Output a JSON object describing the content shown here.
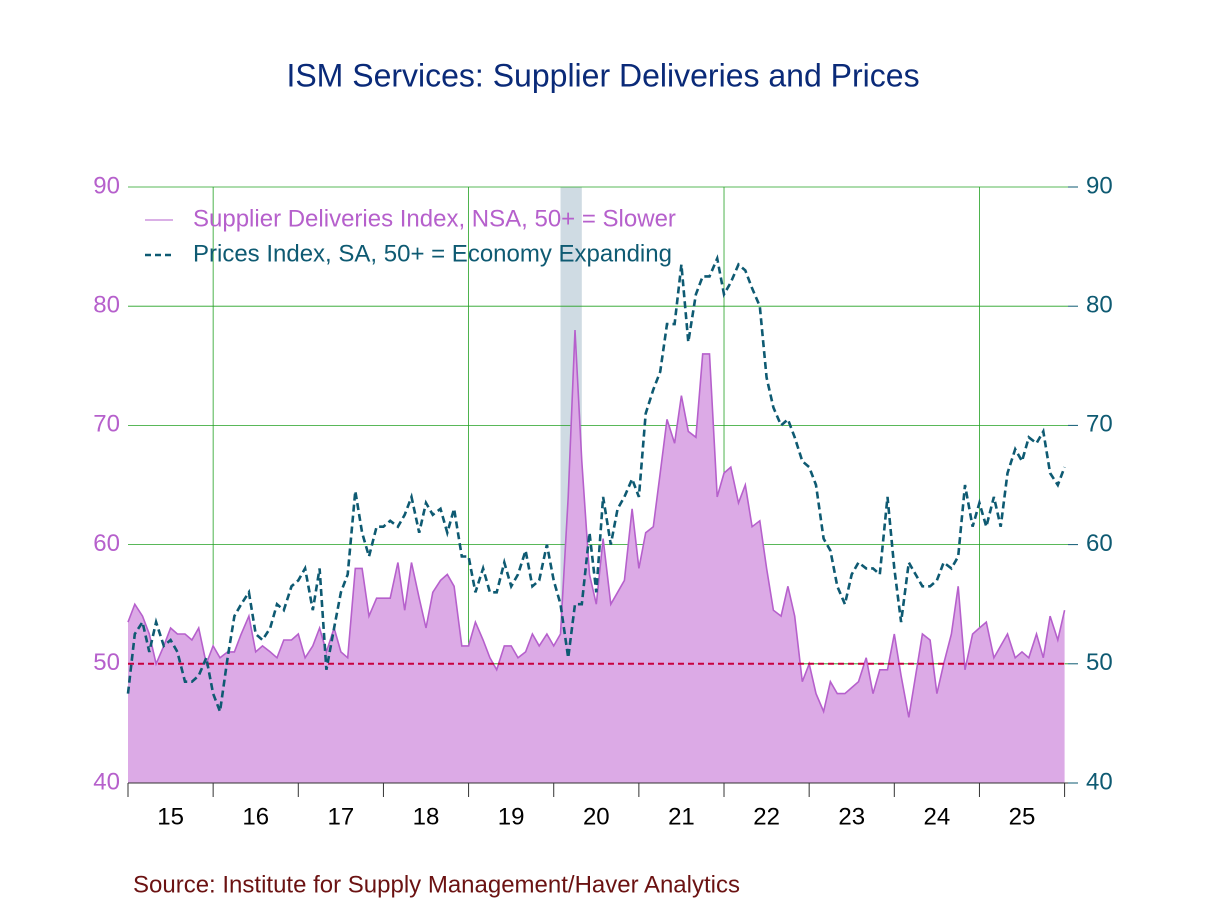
{
  "chart_data": {
    "type": "line",
    "title": "ISM Services: Supplier Deliveries and Prices",
    "source": "Source:  Institute for Supply Management/Haver Analytics",
    "x": [
      2015,
      2015.08,
      2015.17,
      2015.25,
      2015.33,
      2015.42,
      2015.5,
      2015.58,
      2015.67,
      2015.75,
      2015.83,
      2015.92,
      2016,
      2016.08,
      2016.17,
      2016.25,
      2016.33,
      2016.42,
      2016.5,
      2016.58,
      2016.67,
      2016.75,
      2016.83,
      2016.92,
      2017,
      2017.08,
      2017.17,
      2017.25,
      2017.33,
      2017.42,
      2017.5,
      2017.58,
      2017.67,
      2017.75,
      2017.83,
      2017.92,
      2018,
      2018.08,
      2018.17,
      2018.25,
      2018.33,
      2018.42,
      2018.5,
      2018.58,
      2018.67,
      2018.75,
      2018.83,
      2018.92,
      2019,
      2019.08,
      2019.17,
      2019.25,
      2019.33,
      2019.42,
      2019.5,
      2019.58,
      2019.67,
      2019.75,
      2019.83,
      2019.92,
      2020,
      2020.08,
      2020.17,
      2020.25,
      2020.33,
      2020.42,
      2020.5,
      2020.58,
      2020.67,
      2020.75,
      2020.83,
      2020.92,
      2021,
      2021.08,
      2021.17,
      2021.25,
      2021.33,
      2021.42,
      2021.5,
      2021.58,
      2021.67,
      2021.75,
      2021.83,
      2021.92,
      2022,
      2022.08,
      2022.17,
      2022.25,
      2022.33,
      2022.42,
      2022.5,
      2022.58,
      2022.67,
      2022.75,
      2022.83,
      2022.92,
      2023,
      2023.08,
      2023.17,
      2023.25,
      2023.33,
      2023.42,
      2023.5,
      2023.58,
      2023.67,
      2023.75,
      2023.83,
      2023.92,
      2024,
      2024.08,
      2024.17,
      2024.25,
      2024.33,
      2024.42,
      2024.5,
      2024.58,
      2024.67,
      2024.75,
      2024.83,
      2024.92,
      2025,
      2025.08,
      2025.17,
      2025.25,
      2025.33,
      2025.42,
      2025.5,
      2025.58,
      2025.67,
      2025.75,
      2025.83,
      2025.92,
      2026
    ],
    "series": [
      {
        "name": "Supplier Deliveries Index, NSA, 50+ = Slower",
        "color": "#b660cc",
        "fill": "#dcaae6",
        "style": "area",
        "values": [
          53.5,
          55,
          54,
          52.5,
          50,
          51.5,
          53,
          52.5,
          52.5,
          52,
          53,
          50,
          51.5,
          50.5,
          51,
          51,
          52.5,
          54,
          51,
          51.5,
          51,
          50.5,
          52,
          52,
          52.5,
          50.5,
          51.5,
          53,
          51,
          53,
          51,
          50.5,
          58,
          58,
          54,
          55.5,
          55.5,
          55.5,
          58.5,
          54.5,
          58.5,
          55.5,
          53,
          56,
          57,
          57.5,
          56.5,
          51.5,
          51.5,
          53.5,
          52,
          50.5,
          49.5,
          51.5,
          51.5,
          50.5,
          51,
          52.5,
          51.5,
          52.5,
          51.5,
          52.5,
          64,
          78,
          67,
          57.5,
          55,
          60.5,
          55,
          56,
          57,
          63,
          58,
          61,
          61.5,
          66,
          70.5,
          68.5,
          72.5,
          69.5,
          69,
          76,
          76,
          64,
          66,
          66.5,
          63.5,
          65,
          61.5,
          62,
          58,
          54.5,
          54,
          56.5,
          54,
          48.5,
          50,
          47.5,
          46,
          48.5,
          47.5,
          47.5,
          48,
          48.5,
          50.5,
          47.5,
          49.5,
          49.5,
          52.5,
          49,
          45.5,
          49,
          52.5,
          52,
          47.5,
          50,
          52.5,
          56.5,
          49.5,
          52.5,
          53,
          53.5,
          50.5,
          51.5,
          52.5,
          50.5,
          51,
          50.5,
          52.5,
          50.5,
          54,
          52,
          54.5
        ]
      },
      {
        "name": "Prices Index, SA, 50+ = Economy Expanding",
        "color": "#0e5a72",
        "style": "dashed",
        "axis": "y2",
        "values": [
          47.5,
          52.5,
          53.5,
          51,
          53.5,
          51.5,
          52,
          51,
          48.5,
          48.5,
          49,
          50.5,
          47.5,
          46,
          50.5,
          54,
          55,
          56,
          52.5,
          52,
          53,
          55,
          54.5,
          56.5,
          57,
          58,
          54.5,
          58,
          49.5,
          53,
          56,
          57.5,
          64.5,
          61,
          59,
          61.5,
          61.5,
          62,
          61.5,
          62.5,
          64,
          61,
          63.5,
          62.5,
          63,
          61,
          63,
          59,
          59,
          56,
          58,
          56,
          56,
          58.5,
          56.5,
          57.5,
          59.5,
          56.5,
          57,
          60,
          57,
          55,
          50.5,
          55,
          55,
          61,
          56,
          64,
          60,
          63,
          64,
          65.5,
          64,
          71,
          73,
          74.5,
          78.5,
          78.5,
          83.5,
          77,
          81,
          82.5,
          82.5,
          84,
          81,
          82,
          83.5,
          83,
          81.5,
          80,
          74,
          71.5,
          70,
          70.5,
          69,
          67,
          66.5,
          65,
          60.5,
          59.5,
          56.5,
          55,
          57.5,
          58.5,
          58,
          58,
          57.5,
          64,
          58,
          53.5,
          58.5,
          57.5,
          56.5,
          56.5,
          57,
          58.5,
          58,
          59,
          65,
          61.5,
          63.5,
          61.5,
          64,
          61.5,
          66,
          68,
          67,
          69,
          68.5,
          69.5,
          66,
          65,
          66.5
        ]
      }
    ],
    "xlim": [
      2015,
      2026.04
    ],
    "xticks": [
      {
        "value": 2015.5,
        "label": "15"
      },
      {
        "value": 2016.5,
        "label": "16"
      },
      {
        "value": 2017.5,
        "label": "17"
      },
      {
        "value": 2018.5,
        "label": "18"
      },
      {
        "value": 2019.5,
        "label": "19"
      },
      {
        "value": 2020.5,
        "label": "20"
      },
      {
        "value": 2021.5,
        "label": "21"
      },
      {
        "value": 2022.5,
        "label": "22"
      },
      {
        "value": 2023.5,
        "label": "23"
      },
      {
        "value": 2024.5,
        "label": "24"
      },
      {
        "value": 2025.5,
        "label": "25"
      }
    ],
    "ylim": [
      40,
      90
    ],
    "yticks": [
      40,
      50,
      60,
      70,
      80,
      90
    ],
    "y2lim": [
      40,
      90
    ],
    "y2ticks": [
      40,
      50,
      60,
      70,
      80,
      90
    ],
    "reference_line": {
      "value": 50,
      "color": "#c8003c"
    },
    "recession": [
      2020.08,
      2020.33
    ],
    "grid": true,
    "legend": "top-left"
  }
}
